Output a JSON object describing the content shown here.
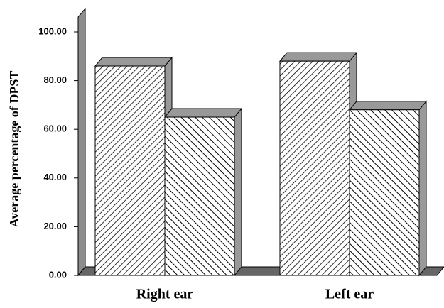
{
  "chart_data": {
    "type": "bar3d",
    "y_label": "Average percentage of DPST",
    "categories": [
      "Right ear",
      "Left ear"
    ],
    "series": [
      {
        "hatch": "/",
        "color": "#ffffff",
        "values": [
          86,
          88
        ]
      },
      {
        "hatch": "\\",
        "color": "#ffffff",
        "values": [
          65,
          68
        ]
      }
    ],
    "ylim": [
      0,
      110
    ],
    "yticks": [
      {
        "value": 0,
        "label": "0.00"
      },
      {
        "value": 20,
        "label": "20.00"
      },
      {
        "value": 40,
        "label": "40.00"
      },
      {
        "value": 60,
        "label": "60.00"
      },
      {
        "value": 80,
        "label": "80.00"
      },
      {
        "value": 100,
        "label": "100.00"
      }
    ]
  }
}
